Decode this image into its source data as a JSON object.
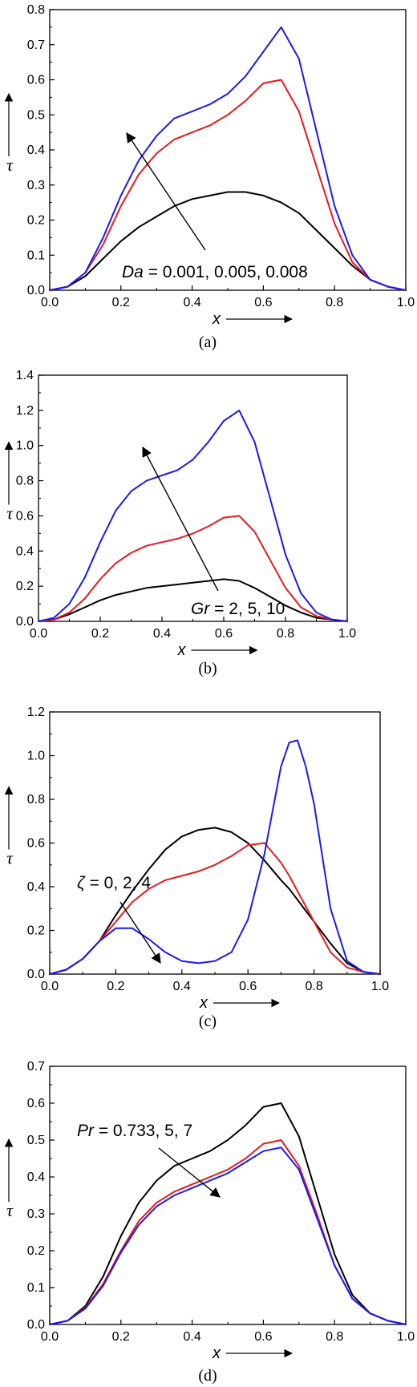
{
  "chart_data": [
    {
      "type": "line",
      "caption": "(a)",
      "xlabel": "x",
      "ylabel": "τ",
      "xlim": [
        0,
        1
      ],
      "ylim": [
        0,
        0.8
      ],
      "xticks": [
        "0.0",
        "0.2",
        "0.4",
        "0.6",
        "0.8",
        "1.0"
      ],
      "yticks": [
        "0.0",
        "0.1",
        "0.2",
        "0.3",
        "0.4",
        "0.5",
        "0.6",
        "0.7",
        "0.8"
      ],
      "annotation": {
        "italic": "Da",
        "rest": " = 0.001, 0.005, 0.008"
      },
      "arrow_direction": "up-left",
      "x": [
        0,
        0.05,
        0.1,
        0.15,
        0.2,
        0.25,
        0.3,
        0.35,
        0.4,
        0.45,
        0.5,
        0.55,
        0.6,
        0.65,
        0.7,
        0.75,
        0.8,
        0.85,
        0.9,
        0.95,
        1.0
      ],
      "series": [
        {
          "color": "#000000",
          "values": [
            0,
            0.01,
            0.04,
            0.09,
            0.14,
            0.18,
            0.21,
            0.24,
            0.26,
            0.27,
            0.28,
            0.28,
            0.27,
            0.25,
            0.22,
            0.17,
            0.12,
            0.07,
            0.03,
            0.01,
            0
          ]
        },
        {
          "color": "#e8191b",
          "values": [
            0,
            0.01,
            0.05,
            0.13,
            0.24,
            0.33,
            0.39,
            0.43,
            0.45,
            0.47,
            0.5,
            0.54,
            0.59,
            0.6,
            0.51,
            0.35,
            0.19,
            0.08,
            0.03,
            0.01,
            0
          ]
        },
        {
          "color": "#1a1aee",
          "values": [
            0,
            0.01,
            0.05,
            0.15,
            0.27,
            0.37,
            0.44,
            0.49,
            0.51,
            0.53,
            0.56,
            0.61,
            0.68,
            0.75,
            0.66,
            0.45,
            0.24,
            0.1,
            0.03,
            0.01,
            0
          ]
        }
      ]
    },
    {
      "type": "line",
      "caption": "(b)",
      "xlabel": "x",
      "ylabel": "τ",
      "xlim": [
        0,
        1
      ],
      "ylim": [
        0,
        1.4
      ],
      "xticks": [
        "0.0",
        "0.2",
        "0.4",
        "0.6",
        "0.8",
        "1.0"
      ],
      "yticks": [
        "0.0",
        "0.2",
        "0.4",
        "0.6",
        "0.8",
        "1.0",
        "1.2",
        "1.4"
      ],
      "annotation": {
        "italic": "Gr",
        "rest": " = 2, 5, 10"
      },
      "arrow_direction": "up-left",
      "x": [
        0,
        0.05,
        0.1,
        0.15,
        0.2,
        0.25,
        0.3,
        0.35,
        0.4,
        0.45,
        0.5,
        0.55,
        0.6,
        0.65,
        0.7,
        0.75,
        0.8,
        0.85,
        0.9,
        0.95,
        1.0
      ],
      "series": [
        {
          "color": "#000000",
          "values": [
            0,
            0.01,
            0.04,
            0.08,
            0.12,
            0.15,
            0.17,
            0.19,
            0.2,
            0.21,
            0.22,
            0.23,
            0.24,
            0.23,
            0.19,
            0.14,
            0.09,
            0.05,
            0.02,
            0.01,
            0
          ]
        },
        {
          "color": "#e8191b",
          "values": [
            0,
            0.01,
            0.05,
            0.13,
            0.24,
            0.33,
            0.39,
            0.43,
            0.45,
            0.47,
            0.5,
            0.54,
            0.59,
            0.6,
            0.51,
            0.35,
            0.19,
            0.08,
            0.03,
            0.01,
            0
          ]
        },
        {
          "color": "#1a1aee",
          "values": [
            0,
            0.02,
            0.1,
            0.25,
            0.45,
            0.63,
            0.74,
            0.8,
            0.83,
            0.86,
            0.92,
            1.02,
            1.14,
            1.2,
            1.02,
            0.7,
            0.38,
            0.16,
            0.05,
            0.01,
            0
          ]
        }
      ]
    },
    {
      "type": "line",
      "caption": "(c)",
      "xlabel": "x",
      "ylabel": "τ",
      "xlim": [
        0,
        1
      ],
      "ylim": [
        0,
        1.2
      ],
      "xticks": [
        "0.0",
        "0.2",
        "0.4",
        "0.6",
        "0.8",
        "1.0"
      ],
      "yticks": [
        "0.0",
        "0.2",
        "0.4",
        "0.6",
        "0.8",
        "1.0",
        "1.2"
      ],
      "annotation": {
        "italic": "ζ",
        "rest": " = 0, 2, 4"
      },
      "arrow_direction": "down-right",
      "x": [
        0,
        0.05,
        0.1,
        0.15,
        0.2,
        0.25,
        0.3,
        0.35,
        0.4,
        0.45,
        0.5,
        0.55,
        0.6,
        0.65,
        0.7,
        0.725,
        0.75,
        0.775,
        0.8,
        0.85,
        0.9,
        0.95,
        1.0
      ],
      "series": [
        {
          "color": "#000000",
          "values": [
            0,
            0.02,
            0.07,
            0.15,
            0.27,
            0.38,
            0.48,
            0.57,
            0.63,
            0.66,
            0.67,
            0.65,
            0.6,
            0.52,
            0.43,
            0.39,
            0.34,
            0.29,
            0.24,
            0.14,
            0.05,
            0.01,
            0
          ]
        },
        {
          "color": "#e8191b",
          "values": [
            0,
            0.02,
            0.07,
            0.15,
            0.24,
            0.33,
            0.39,
            0.43,
            0.45,
            0.47,
            0.5,
            0.54,
            0.59,
            0.6,
            0.51,
            0.45,
            0.38,
            0.31,
            0.24,
            0.1,
            0.03,
            0.01,
            0
          ]
        },
        {
          "color": "#1a1aee",
          "values": [
            0,
            0.02,
            0.07,
            0.15,
            0.21,
            0.21,
            0.16,
            0.1,
            0.06,
            0.05,
            0.06,
            0.1,
            0.25,
            0.55,
            0.95,
            1.06,
            1.07,
            0.95,
            0.78,
            0.3,
            0.06,
            0.01,
            0
          ]
        }
      ]
    },
    {
      "type": "line",
      "caption": "(d)",
      "xlabel": "x",
      "ylabel": "τ",
      "xlim": [
        0,
        1
      ],
      "ylim": [
        0,
        0.7
      ],
      "xticks": [
        "0.0",
        "0.2",
        "0.4",
        "0.6",
        "0.8",
        "1.0"
      ],
      "yticks": [
        "0.0",
        "0.1",
        "0.2",
        "0.3",
        "0.4",
        "0.5",
        "0.6",
        "0.7"
      ],
      "annotation": {
        "italic": "Pr",
        "rest": " = 0.733, 5, 7"
      },
      "arrow_direction": "down-right",
      "x": [
        0,
        0.05,
        0.1,
        0.15,
        0.2,
        0.25,
        0.3,
        0.35,
        0.4,
        0.45,
        0.5,
        0.55,
        0.6,
        0.65,
        0.7,
        0.75,
        0.8,
        0.85,
        0.9,
        0.95,
        1.0
      ],
      "series": [
        {
          "color": "#000000",
          "values": [
            0,
            0.01,
            0.05,
            0.13,
            0.24,
            0.33,
            0.39,
            0.43,
            0.45,
            0.47,
            0.5,
            0.54,
            0.59,
            0.6,
            0.51,
            0.35,
            0.19,
            0.08,
            0.03,
            0.01,
            0
          ]
        },
        {
          "color": "#e8191b",
          "values": [
            0,
            0.01,
            0.045,
            0.11,
            0.2,
            0.28,
            0.33,
            0.36,
            0.38,
            0.4,
            0.42,
            0.45,
            0.49,
            0.5,
            0.43,
            0.3,
            0.16,
            0.07,
            0.03,
            0.01,
            0
          ]
        },
        {
          "color": "#1a1aee",
          "values": [
            0,
            0.01,
            0.043,
            0.105,
            0.195,
            0.27,
            0.32,
            0.35,
            0.37,
            0.39,
            0.41,
            0.44,
            0.47,
            0.48,
            0.42,
            0.29,
            0.16,
            0.07,
            0.03,
            0.01,
            0
          ]
        }
      ]
    }
  ]
}
